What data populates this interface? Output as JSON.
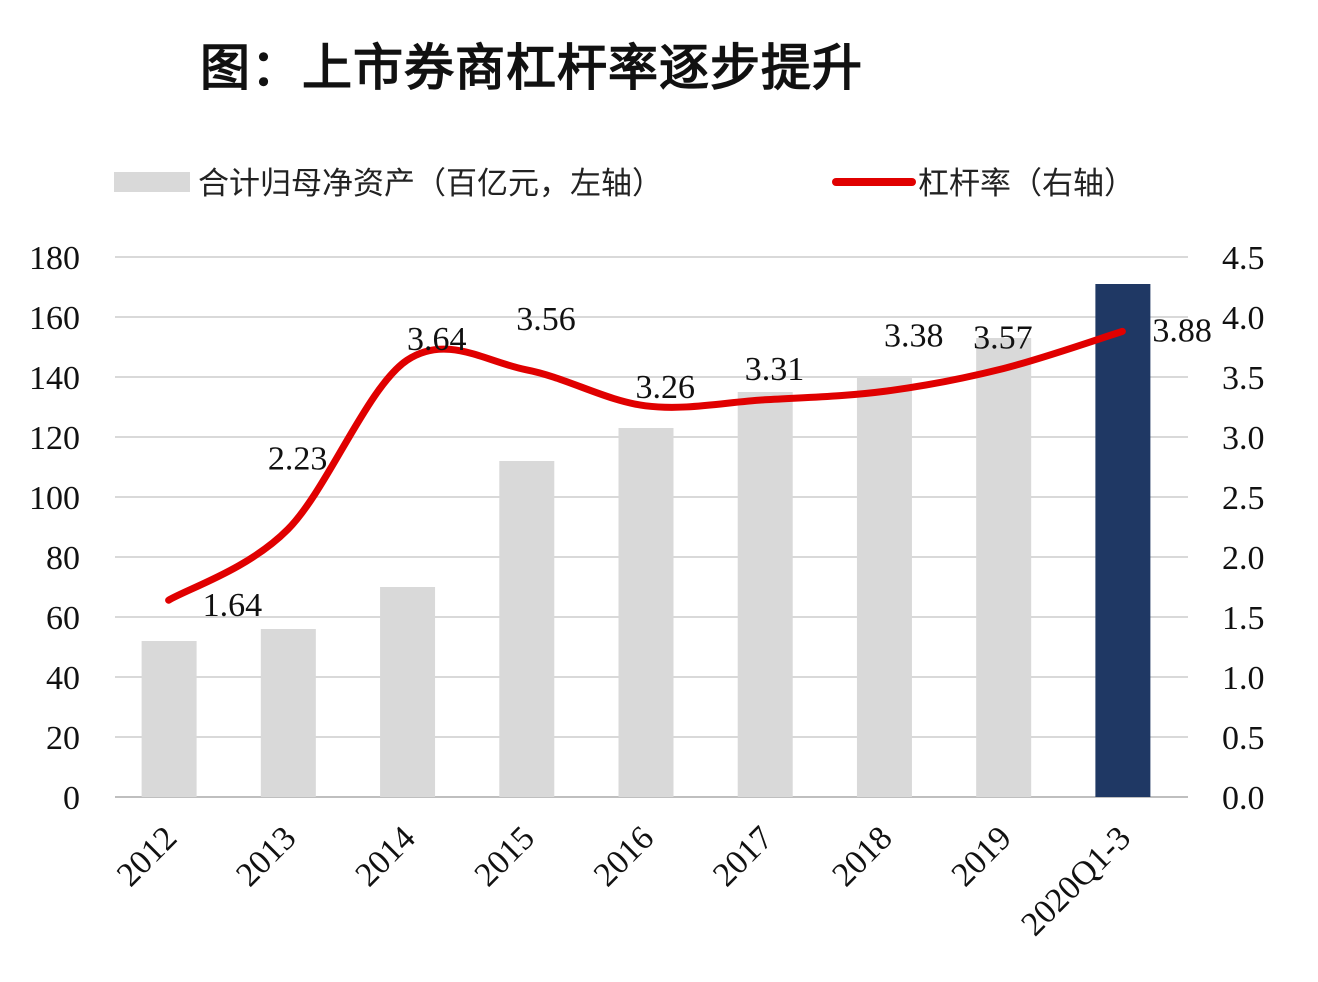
{
  "chart_data": {
    "type": "bar+line",
    "title": "图：上市券商杠杆率逐步提升",
    "categories": [
      "2012",
      "2013",
      "2014",
      "2015",
      "2016",
      "2017",
      "2018",
      "2019",
      "2020Q1-3"
    ],
    "series": [
      {
        "name": "合计归母净资产（百亿元，左轴）",
        "type": "bar",
        "axis": "left",
        "values": [
          52,
          56,
          70,
          112,
          123,
          135,
          140,
          153,
          171
        ],
        "color": "#d9d9d9",
        "highlight_color": "#1f3864",
        "highlight_index": 8
      },
      {
        "name": "杠杆率（右轴）",
        "type": "line",
        "axis": "right",
        "values": [
          1.64,
          2.23,
          3.64,
          3.56,
          3.26,
          3.31,
          3.38,
          3.57,
          3.88
        ],
        "labels": [
          "1.64",
          "2.23",
          "3.64",
          "3.56",
          "3.26",
          "3.31",
          "3.38",
          "3.57",
          "3.88"
        ],
        "color": "#e00000"
      }
    ],
    "left_axis": {
      "ylim": [
        0,
        180
      ],
      "ticks": [
        "0",
        "20",
        "40",
        "60",
        "80",
        "100",
        "120",
        "140",
        "160",
        "180"
      ]
    },
    "right_axis": {
      "ylim": [
        0,
        4.5
      ],
      "ticks": [
        "0.0",
        "0.5",
        "1.0",
        "1.5",
        "2.0",
        "2.5",
        "3.0",
        "3.5",
        "4.0",
        "4.5"
      ]
    },
    "grid": true,
    "legend_placement": "top"
  }
}
